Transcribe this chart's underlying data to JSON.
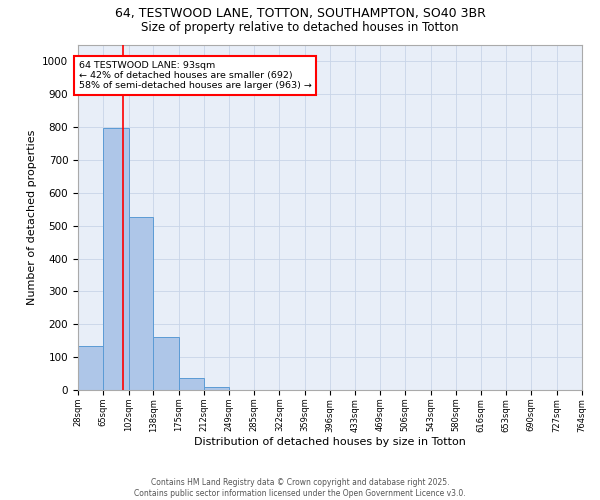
{
  "title_line1": "64, TESTWOOD LANE, TOTTON, SOUTHAMPTON, SO40 3BR",
  "title_line2": "Size of property relative to detached houses in Totton",
  "xlabel": "Distribution of detached houses by size in Totton",
  "ylabel": "Number of detached properties",
  "bar_edges": [
    28,
    65,
    102,
    138,
    175,
    212,
    249,
    285,
    322,
    359,
    396,
    433,
    469,
    506,
    543,
    580,
    616,
    653,
    690,
    727,
    764
  ],
  "bar_heights": [
    135,
    797,
    528,
    160,
    37,
    10,
    0,
    0,
    0,
    0,
    0,
    0,
    0,
    0,
    0,
    0,
    0,
    0,
    0,
    0
  ],
  "bar_color": "#aec6e8",
  "bar_edge_color": "#5b9bd5",
  "grid_color": "#c8d4e8",
  "bg_color": "#e8eef8",
  "vline_x": 93,
  "vline_color": "red",
  "annotation_text": "64 TESTWOOD LANE: 93sqm\n← 42% of detached houses are smaller (692)\n58% of semi-detached houses are larger (963) →",
  "annotation_box_color": "white",
  "annotation_box_edge_color": "red",
  "ylim": [
    0,
    1050
  ],
  "yticks": [
    0,
    100,
    200,
    300,
    400,
    500,
    600,
    700,
    800,
    900,
    1000
  ],
  "footnote": "Contains HM Land Registry data © Crown copyright and database right 2025.\nContains public sector information licensed under the Open Government Licence v3.0.",
  "tick_labels": [
    "28sqm",
    "65sqm",
    "102sqm",
    "138sqm",
    "175sqm",
    "212sqm",
    "249sqm",
    "285sqm",
    "322sqm",
    "359sqm",
    "396sqm",
    "433sqm",
    "469sqm",
    "506sqm",
    "543sqm",
    "580sqm",
    "616sqm",
    "653sqm",
    "690sqm",
    "727sqm",
    "764sqm"
  ]
}
